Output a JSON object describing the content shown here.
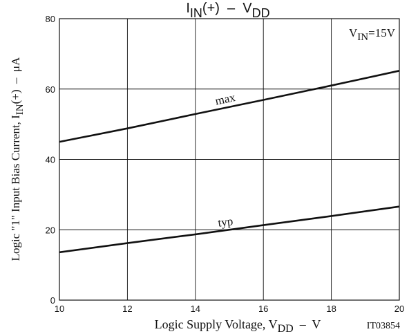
{
  "chart_data": {
    "type": "line",
    "title": "I<sub>IN</sub>(+) – V<sub>DD</sub>",
    "title_parts": {
      "main": "I",
      "sub1": "IN",
      "mid": "(+)  –  V",
      "sub2": "DD"
    },
    "xlabel_parts": {
      "main": "Logic Supply Voltage, V",
      "sub": "DD",
      "tail": "  –  V"
    },
    "ylabel_parts": {
      "main": "Logic \"1\" Input Bias Current, I",
      "sub": "IN",
      "tail": "(+)  –  μA"
    },
    "xlim": [
      10,
      20
    ],
    "ylim": [
      0,
      80
    ],
    "x_ticks": [
      10,
      12,
      14,
      16,
      18,
      20
    ],
    "y_ticks": [
      0,
      20,
      40,
      60,
      80
    ],
    "grid": true,
    "annotation_parts": {
      "main": "V",
      "sub": "IN",
      "tail": "=15V"
    },
    "code": "IT03854",
    "series": [
      {
        "name": "max",
        "x": [
          10,
          12,
          14,
          16,
          18,
          20
        ],
        "y": [
          45,
          48.8,
          52.9,
          56.9,
          61.0,
          65.2
        ]
      },
      {
        "name": "typ",
        "x": [
          10,
          12,
          14,
          16,
          18,
          20
        ],
        "y": [
          13.6,
          16.2,
          18.7,
          21.3,
          23.9,
          26.6
        ]
      }
    ],
    "series_label_x": [
      14.9,
      14.9
    ],
    "colors": {
      "line": "#111111",
      "grid": "#111111"
    }
  }
}
